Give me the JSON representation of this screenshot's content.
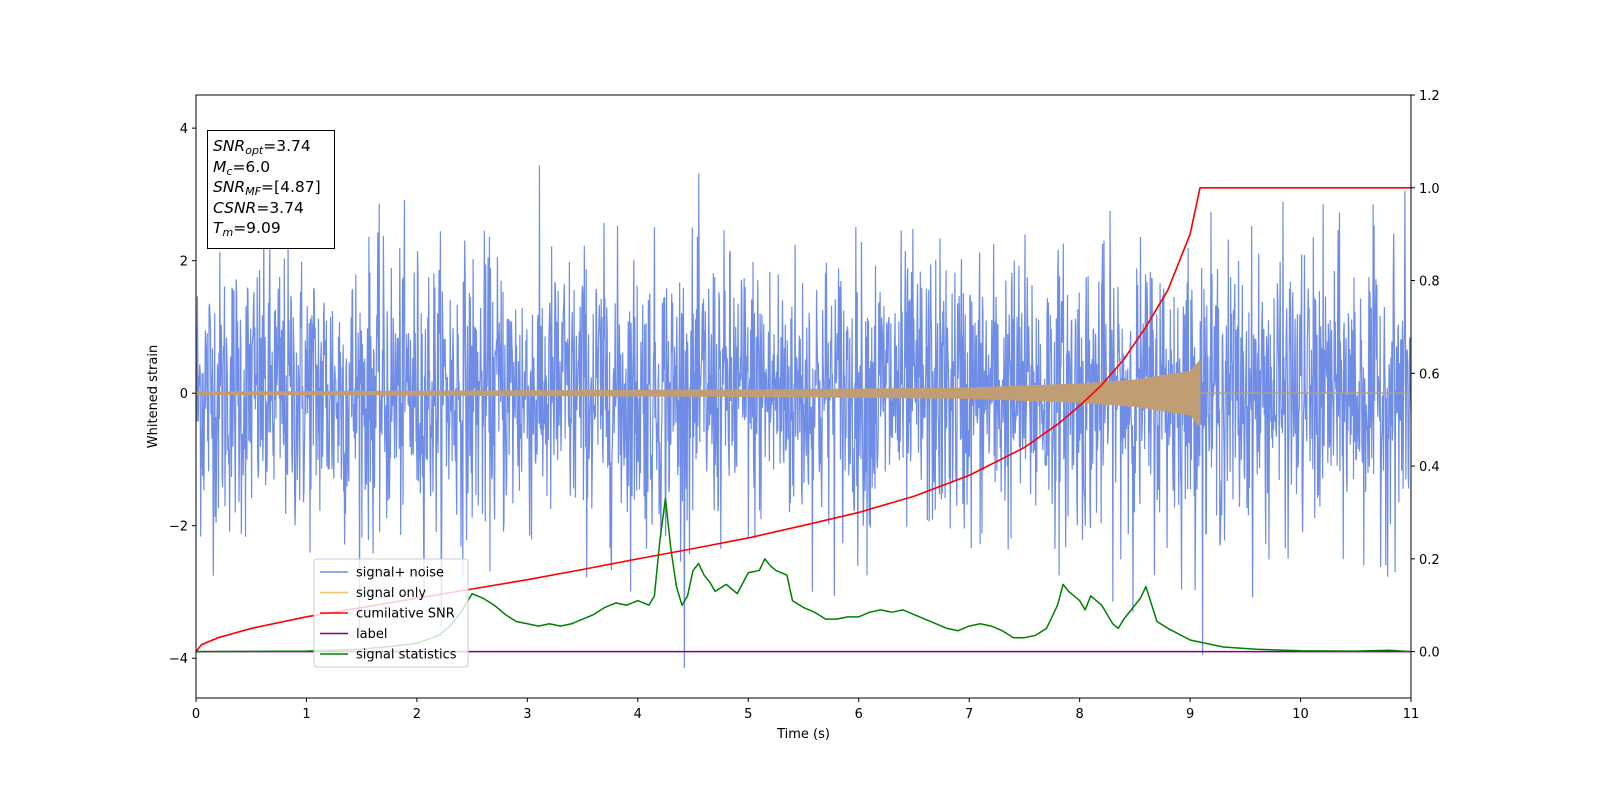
{
  "chart_data": {
    "type": "line",
    "xlabel": "Time (s)",
    "ylabel": "Whitened strain",
    "xlim": [
      0,
      11
    ],
    "ylim": [
      -4.6,
      4.5
    ],
    "y2lim": [
      -0.1,
      1.2
    ],
    "x_ticks": [
      0,
      1,
      2,
      3,
      4,
      5,
      6,
      7,
      8,
      9,
      10,
      11
    ],
    "y_ticks": [
      -4,
      -2,
      0,
      2,
      4
    ],
    "y2_ticks": [
      "0.0",
      "0.2",
      "0.4",
      "0.6",
      "0.8",
      "1.0",
      "1.2"
    ],
    "legend_position": "lower-left",
    "colors": {
      "signal_noise": "#6f8de6",
      "signal_only": "#f5c46e",
      "signal_only_overlap": "#c19d74",
      "cumulative_snr": "#ff0000",
      "label": "#800080",
      "signal_statistics": "#008000"
    },
    "series": [
      {
        "name": "signal+ noise",
        "axis": "left",
        "color": "#6f8de6",
        "description_note": "dense noise trace, roughly within -2.5..2.5 with spikes",
        "envelope": {
          "min": -4.15,
          "max": 3.82
        }
      },
      {
        "name": "signal only",
        "axis": "left",
        "color": "#f5c46e",
        "chirp_end": 9.09,
        "amplitude": {
          "x": [
            0,
            5,
            7,
            8,
            8.5,
            9,
            9.09
          ],
          "y": [
            0.02,
            0.05,
            0.08,
            0.14,
            0.2,
            0.33,
            0.5
          ]
        }
      },
      {
        "name": "cumilative SNR",
        "axis": "right",
        "color": "#ff0000",
        "x": [
          0,
          0.05,
          0.2,
          0.5,
          1,
          1.5,
          2,
          2.5,
          3,
          3.5,
          4,
          4.5,
          5,
          5.5,
          6,
          6.5,
          7,
          7.5,
          7.8,
          8,
          8.2,
          8.4,
          8.6,
          8.8,
          9,
          9.09,
          11
        ],
        "y": [
          0.0,
          0.015,
          0.03,
          0.05,
          0.075,
          0.095,
          0.115,
          0.135,
          0.155,
          0.177,
          0.2,
          0.222,
          0.245,
          0.272,
          0.3,
          0.335,
          0.38,
          0.44,
          0.49,
          0.53,
          0.575,
          0.63,
          0.7,
          0.78,
          0.9,
          1.0,
          1.0
        ]
      },
      {
        "name": "label",
        "axis": "right",
        "color": "#800080",
        "x": [
          0,
          11
        ],
        "y": [
          0.0,
          0.0
        ]
      },
      {
        "name": "signal statistics",
        "axis": "right",
        "color": "#008000",
        "x": [
          0,
          1,
          1.5,
          1.8,
          2.0,
          2.2,
          2.3,
          2.4,
          2.5,
          2.6,
          2.7,
          2.8,
          2.9,
          3.0,
          3.1,
          3.2,
          3.3,
          3.4,
          3.5,
          3.6,
          3.7,
          3.8,
          3.9,
          4.0,
          4.1,
          4.15,
          4.2,
          4.25,
          4.3,
          4.35,
          4.4,
          4.45,
          4.5,
          4.55,
          4.6,
          4.65,
          4.7,
          4.8,
          4.9,
          5.0,
          5.1,
          5.15,
          5.2,
          5.25,
          5.3,
          5.35,
          5.4,
          5.5,
          5.6,
          5.7,
          5.8,
          5.9,
          6.0,
          6.1,
          6.2,
          6.3,
          6.4,
          6.5,
          6.6,
          6.7,
          6.8,
          6.9,
          7.0,
          7.1,
          7.2,
          7.3,
          7.4,
          7.5,
          7.6,
          7.7,
          7.8,
          7.85,
          7.9,
          8.0,
          8.05,
          8.1,
          8.2,
          8.3,
          8.35,
          8.4,
          8.5,
          8.55,
          8.6,
          8.7,
          8.8,
          9.0,
          9.1,
          9.3,
          9.6,
          10,
          10.5,
          10.8,
          11
        ],
        "y": [
          0.0,
          0.001,
          0.005,
          0.012,
          0.018,
          0.035,
          0.055,
          0.085,
          0.125,
          0.115,
          0.1,
          0.08,
          0.065,
          0.06,
          0.055,
          0.06,
          0.055,
          0.06,
          0.07,
          0.08,
          0.095,
          0.105,
          0.1,
          0.11,
          0.1,
          0.12,
          0.24,
          0.33,
          0.22,
          0.14,
          0.1,
          0.12,
          0.175,
          0.19,
          0.165,
          0.15,
          0.13,
          0.145,
          0.125,
          0.17,
          0.175,
          0.2,
          0.185,
          0.175,
          0.17,
          0.165,
          0.11,
          0.095,
          0.085,
          0.07,
          0.07,
          0.075,
          0.075,
          0.085,
          0.09,
          0.085,
          0.09,
          0.08,
          0.07,
          0.06,
          0.05,
          0.045,
          0.055,
          0.06,
          0.055,
          0.045,
          0.03,
          0.03,
          0.035,
          0.05,
          0.1,
          0.145,
          0.13,
          0.11,
          0.09,
          0.12,
          0.1,
          0.06,
          0.05,
          0.07,
          0.1,
          0.115,
          0.14,
          0.065,
          0.05,
          0.025,
          0.02,
          0.01,
          0.005,
          0.002,
          0.001,
          0.003,
          0.0
        ]
      }
    ]
  },
  "infobox": {
    "snr_opt": {
      "base": "SNR",
      "sub": "opt",
      "value": "=3.74"
    },
    "mc": {
      "base": "M",
      "sub": "c",
      "value": "=6.0"
    },
    "snr_mf": {
      "base": "SNR",
      "sub": "MF",
      "value": "=[4.87]"
    },
    "csnr": {
      "base": "CSNR",
      "value": "=3.74"
    },
    "tm": {
      "base": "T",
      "sub": "m",
      "value": "=9.09"
    }
  }
}
